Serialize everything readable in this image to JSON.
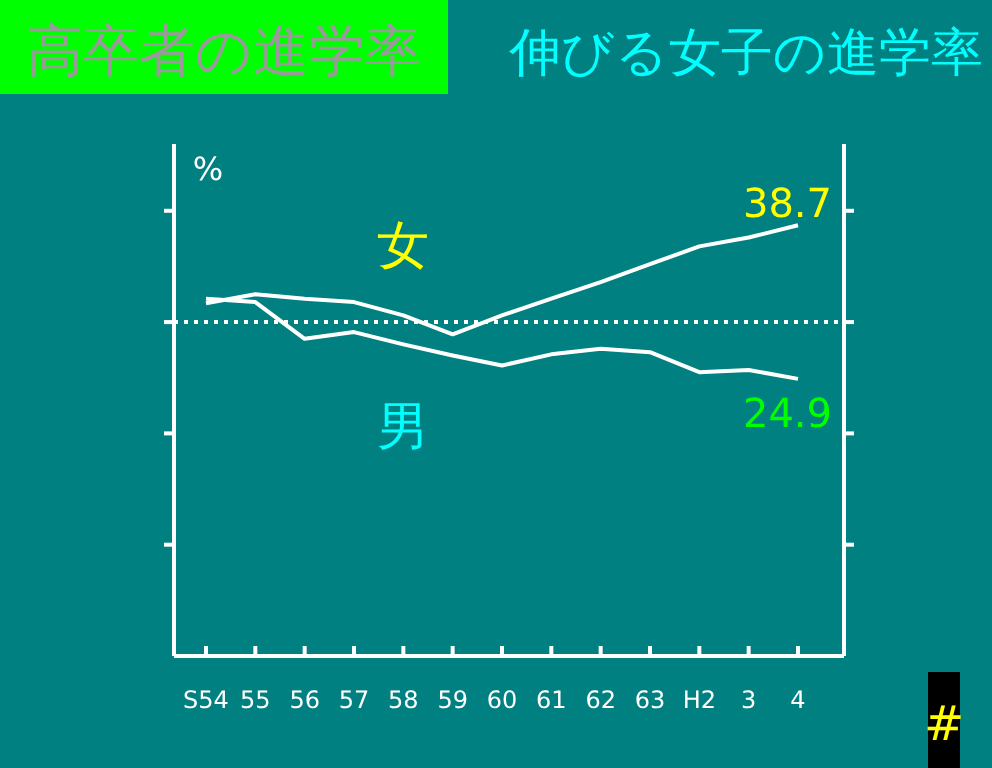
{
  "chart_data": {
    "type": "line",
    "title": "高卒者の進学率",
    "subtitle": "伸びる女子の進学率",
    "ylabel": "%",
    "categories": [
      "S54",
      "55",
      "56",
      "57",
      "58",
      "59",
      "60",
      "61",
      "62",
      "63",
      "H2",
      "3",
      "4"
    ],
    "series": [
      {
        "name": "女",
        "color": "#ffffff",
        "values": [
          31.7,
          32.5,
          32.1,
          31.8,
          30.6,
          28.9,
          30.6,
          32.1,
          33.6,
          35.2,
          36.8,
          37.6,
          38.7
        ],
        "value_labels": [
          null,
          null,
          null,
          null,
          null,
          null,
          null,
          null,
          null,
          null,
          null,
          null,
          "38.7"
        ]
      },
      {
        "name": "男",
        "color": "#ffffff",
        "values": [
          32.1,
          31.8,
          28.5,
          29.1,
          28.0,
          27.0,
          26.1,
          27.1,
          27.6,
          27.3,
          25.5,
          25.7,
          24.9
        ],
        "value_labels": [
          null,
          null,
          null,
          null,
          null,
          null,
          null,
          null,
          null,
          null,
          null,
          null,
          "24.9"
        ]
      }
    ],
    "ylim": [
      0,
      46
    ],
    "yticks": [
      {
        "value": 10,
        "label": null
      },
      {
        "value": 20,
        "label": null
      },
      {
        "value": 30,
        "label": null
      },
      {
        "value": 40,
        "label": null
      }
    ],
    "tick_labels": "x",
    "ref_lines": [
      {
        "axis": "y",
        "value": 30,
        "color": "#ffffff",
        "line_style": "dotted"
      }
    ],
    "line_style": "solid",
    "marker": "none",
    "legend": false,
    "grid": false,
    "annotations": [
      "#"
    ]
  }
}
